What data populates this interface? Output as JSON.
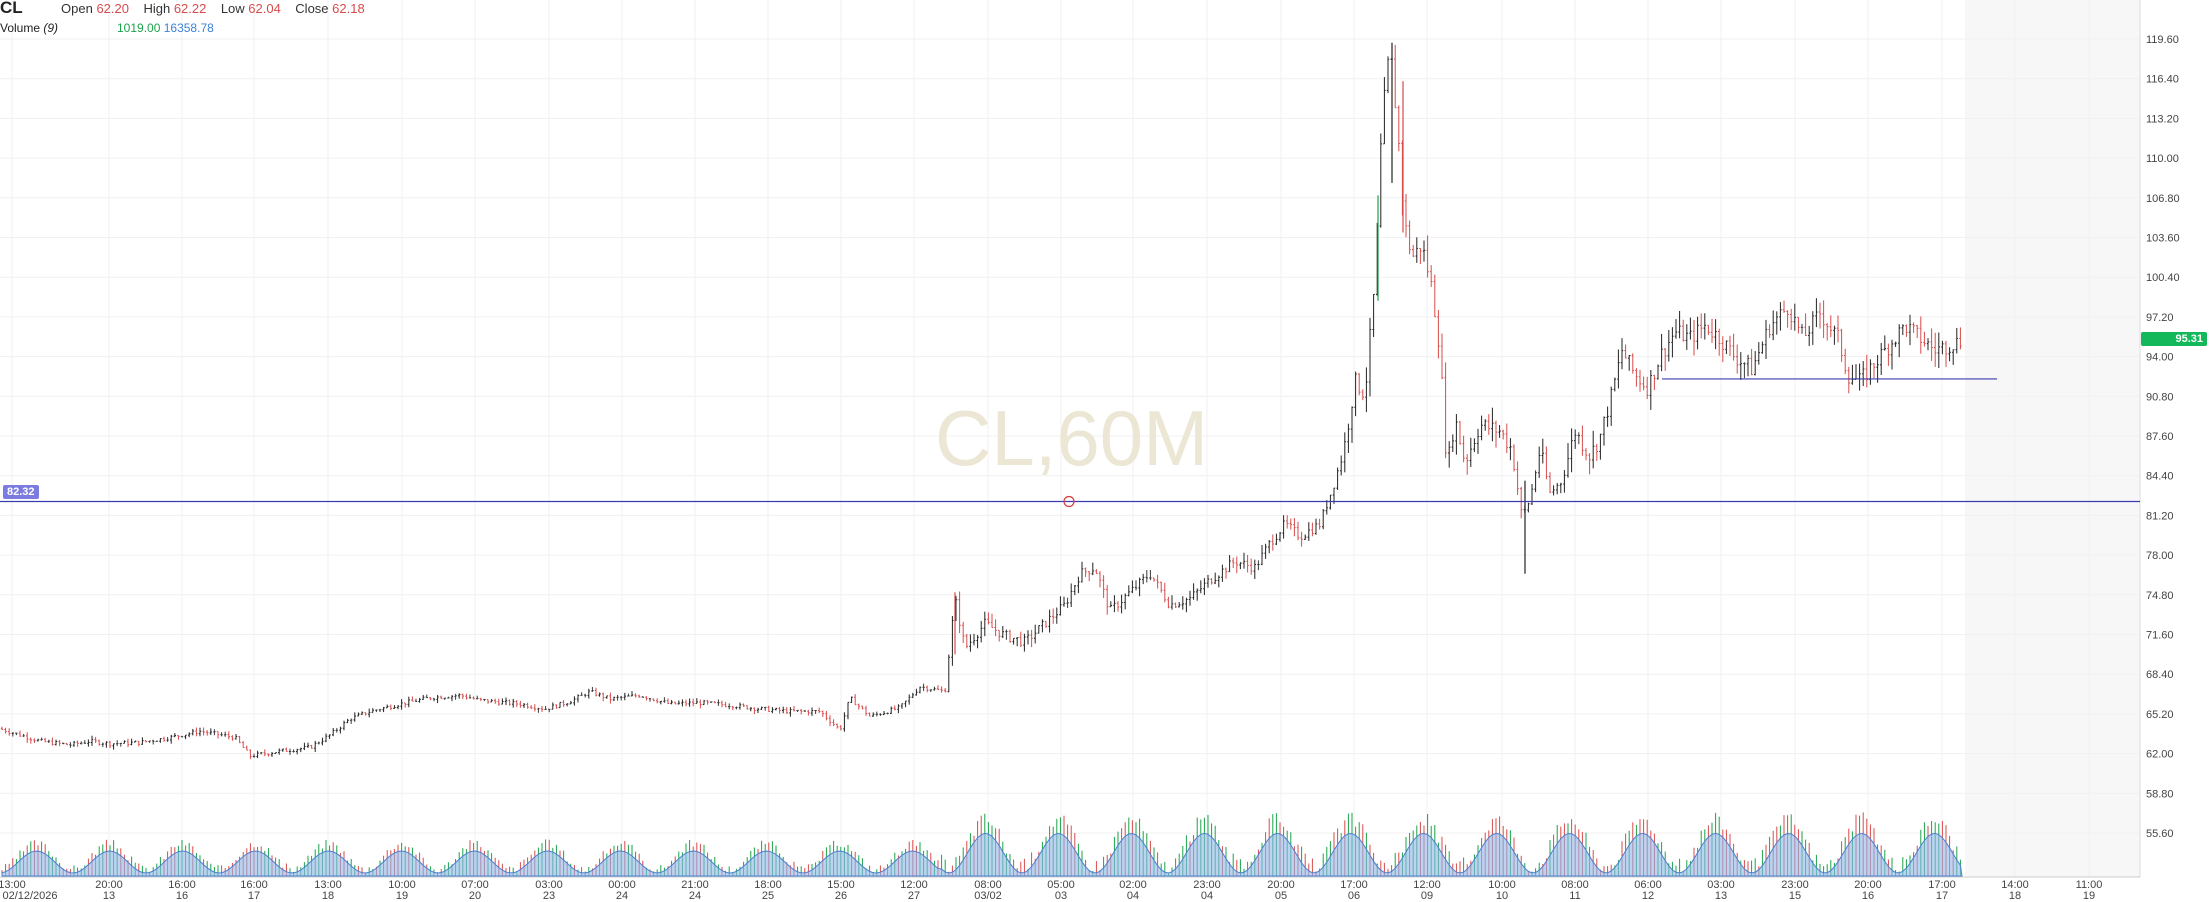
{
  "header": {
    "symbol": "CL",
    "open_label": "Open",
    "open_value": "62.20",
    "high_label": "High",
    "high_value": "62.22",
    "low_label": "Low",
    "low_value": "62.04",
    "close_label": "Close",
    "close_value": "62.18",
    "volume_label": "Volume",
    "volume_period": "(9)",
    "volume_value": "1019.00",
    "volume_ma_value": "16358.78"
  },
  "watermark": "CL,60M",
  "colors": {
    "up": "#1aa34a",
    "down": "#d84b4b",
    "neutral": "#3a3a3a",
    "hline": "#3b3bb0",
    "last_price": "#12b85a",
    "volume_ma_fill": "#8fb8ea"
  },
  "chart_data": {
    "type": "candlestick",
    "timeframe": "60M",
    "y_axis_ticks": [
      "119.60",
      "116.40",
      "113.20",
      "110.00",
      "106.80",
      "103.60",
      "100.40",
      "97.20",
      "94.00",
      "90.80",
      "87.60",
      "84.40",
      "81.20",
      "78.00",
      "74.80",
      "71.60",
      "68.40",
      "65.20",
      "62.00",
      "58.80",
      "55.60"
    ],
    "ylim": [
      54.0,
      121.0
    ],
    "x_axis_ticks": [
      {
        "time": "13:00",
        "date": "02/12/2026"
      },
      {
        "time": "20:00",
        "date": "13"
      },
      {
        "time": "16:00",
        "date": "16"
      },
      {
        "time": "16:00",
        "date": "17"
      },
      {
        "time": "13:00",
        "date": "18"
      },
      {
        "time": "10:00",
        "date": "19"
      },
      {
        "time": "07:00",
        "date": "20"
      },
      {
        "time": "03:00",
        "date": "23"
      },
      {
        "time": "00:00",
        "date": "24"
      },
      {
        "time": "21:00",
        "date": "24"
      },
      {
        "time": "18:00",
        "date": "25"
      },
      {
        "time": "15:00",
        "date": "26"
      },
      {
        "time": "12:00",
        "date": "27"
      },
      {
        "time": "08:00",
        "date": "03/02"
      },
      {
        "time": "05:00",
        "date": "03"
      },
      {
        "time": "02:00",
        "date": "04"
      },
      {
        "time": "23:00",
        "date": "04"
      },
      {
        "time": "20:00",
        "date": "05"
      },
      {
        "time": "17:00",
        "date": "06"
      },
      {
        "time": "12:00",
        "date": "09"
      },
      {
        "time": "10:00",
        "date": "10"
      },
      {
        "time": "08:00",
        "date": "11"
      },
      {
        "time": "06:00",
        "date": "12"
      },
      {
        "time": "03:00",
        "date": "13"
      },
      {
        "time": "23:00",
        "date": "15"
      },
      {
        "time": "20:00",
        "date": "16"
      },
      {
        "time": "17:00",
        "date": "17"
      },
      {
        "time": "14:00",
        "date": "18"
      },
      {
        "time": "11:00",
        "date": "19"
      }
    ],
    "price_path": [
      [
        0,
        64.0
      ],
      [
        40,
        63.0
      ],
      [
        70,
        62.7
      ],
      [
        90,
        63.0
      ],
      [
        110,
        62.8
      ],
      [
        140,
        62.9
      ],
      [
        170,
        63.3
      ],
      [
        200,
        63.8
      ],
      [
        235,
        63.3
      ],
      [
        250,
        61.8
      ],
      [
        280,
        62.2
      ],
      [
        310,
        62.5
      ],
      [
        330,
        63.5
      ],
      [
        350,
        64.8
      ],
      [
        370,
        65.4
      ],
      [
        400,
        66.0
      ],
      [
        430,
        66.5
      ],
      [
        460,
        66.7
      ],
      [
        480,
        66.3
      ],
      [
        520,
        66.0
      ],
      [
        545,
        65.6
      ],
      [
        570,
        66.2
      ],
      [
        590,
        67.0
      ],
      [
        610,
        66.4
      ],
      [
        640,
        66.7
      ],
      [
        670,
        66.0
      ],
      [
        700,
        66.1
      ],
      [
        730,
        65.9
      ],
      [
        760,
        65.6
      ],
      [
        790,
        65.4
      ],
      [
        820,
        65.4
      ],
      [
        840,
        63.9
      ],
      [
        850,
        66.5
      ],
      [
        870,
        65.0
      ],
      [
        900,
        65.7
      ],
      [
        920,
        67.4
      ],
      [
        945,
        67.0
      ],
      [
        955,
        74.5
      ],
      [
        965,
        70.5
      ],
      [
        985,
        72.5
      ],
      [
        1005,
        71.5
      ],
      [
        1025,
        71.0
      ],
      [
        1045,
        72.5
      ],
      [
        1065,
        74.0
      ],
      [
        1080,
        76.5
      ],
      [
        1095,
        77.0
      ],
      [
        1110,
        73.5
      ],
      [
        1130,
        75.0
      ],
      [
        1150,
        76.5
      ],
      [
        1170,
        74.0
      ],
      [
        1190,
        74.5
      ],
      [
        1210,
        76.0
      ],
      [
        1235,
        77.5
      ],
      [
        1255,
        77.0
      ],
      [
        1270,
        79.0
      ],
      [
        1285,
        80.5
      ],
      [
        1300,
        79.5
      ],
      [
        1320,
        80.5
      ],
      [
        1335,
        84.0
      ],
      [
        1345,
        87.0
      ],
      [
        1355,
        92.0
      ],
      [
        1365,
        91.0
      ],
      [
        1375,
        100.0
      ],
      [
        1382,
        113.0
      ],
      [
        1390,
        119.0
      ],
      [
        1398,
        112.0
      ],
      [
        1404,
        105.0
      ],
      [
        1412,
        102.0
      ],
      [
        1422,
        103.0
      ],
      [
        1432,
        99.5
      ],
      [
        1440,
        94.5
      ],
      [
        1447,
        85.0
      ],
      [
        1455,
        89.0
      ],
      [
        1465,
        85.5
      ],
      [
        1480,
        88.5
      ],
      [
        1500,
        88.0
      ],
      [
        1512,
        86.5
      ],
      [
        1522,
        81.0
      ],
      [
        1530,
        82.5
      ],
      [
        1540,
        86.5
      ],
      [
        1550,
        83.0
      ],
      [
        1562,
        84.0
      ],
      [
        1575,
        88.0
      ],
      [
        1590,
        86.0
      ],
      [
        1600,
        87.5
      ],
      [
        1612,
        91.0
      ],
      [
        1622,
        94.5
      ],
      [
        1635,
        92.5
      ],
      [
        1648,
        91.5
      ],
      [
        1660,
        94.0
      ],
      [
        1675,
        96.0
      ],
      [
        1690,
        95.5
      ],
      [
        1705,
        96.5
      ],
      [
        1720,
        95.5
      ],
      [
        1735,
        94.0
      ],
      [
        1752,
        93.0
      ],
      [
        1770,
        96.5
      ],
      [
        1788,
        98.0
      ],
      [
        1803,
        95.5
      ],
      [
        1820,
        97.5
      ],
      [
        1838,
        95.5
      ],
      [
        1848,
        92.5
      ],
      [
        1860,
        92.0
      ],
      [
        1875,
        93.5
      ],
      [
        1890,
        95.0
      ],
      [
        1905,
        96.5
      ],
      [
        1920,
        95.5
      ],
      [
        1935,
        94.5
      ],
      [
        1950,
        95.0
      ],
      [
        1962,
        95.3
      ]
    ],
    "horizontal_lines": [
      {
        "price": 82.32,
        "label": "82.32",
        "segment": "full"
      },
      {
        "price": 92.2,
        "segment": "partial"
      }
    ],
    "last_price": "95.31",
    "volume_series_name": "Volume",
    "volume_period": 9
  }
}
